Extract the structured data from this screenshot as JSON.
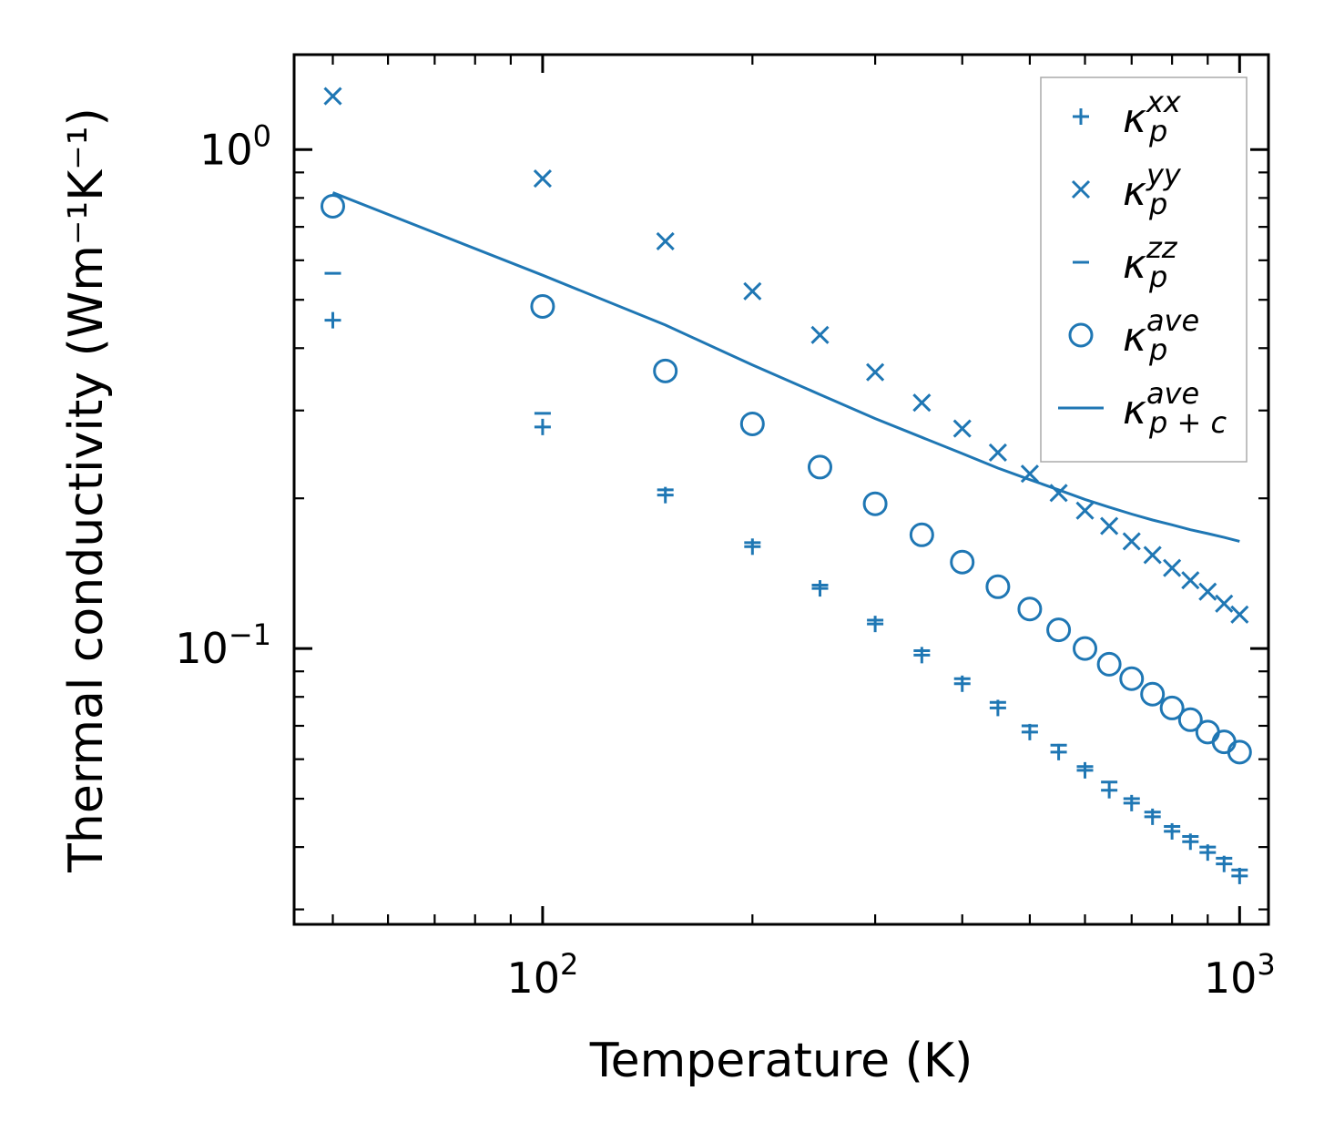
{
  "chart_data": {
    "type": "scatter",
    "xscale": "log",
    "yscale": "log",
    "xlim": [
      44,
      1100
    ],
    "ylim": [
      0.028,
      1.55
    ],
    "xlabel": "Temperature (K)",
    "ylabel": "Thermal conductivity (Wm⁻¹K⁻¹)",
    "color": "#1f77b4",
    "x_ticks": [
      {
        "value": 100,
        "base": "10",
        "exp": "2"
      },
      {
        "value": 1000,
        "base": "10",
        "exp": "3"
      }
    ],
    "y_ticks": [
      {
        "value": 0.1,
        "base": "10",
        "exp": "−1"
      },
      {
        "value": 1,
        "base": "10",
        "exp": "0"
      }
    ],
    "x": [
      50,
      100,
      150,
      200,
      250,
      300,
      350,
      400,
      450,
      500,
      550,
      600,
      650,
      700,
      750,
      800,
      850,
      900,
      950,
      1000
    ],
    "series": [
      {
        "name": "kxx",
        "marker": "plus",
        "label": {
          "base": "κ",
          "sup": "xx",
          "sub": "p"
        },
        "values": [
          0.455,
          0.278,
          0.203,
          0.16,
          0.132,
          0.112,
          0.097,
          0.085,
          0.076,
          0.068,
          0.062,
          0.057,
          0.052,
          0.049,
          0.046,
          0.043,
          0.041,
          0.039,
          0.037,
          0.035
        ]
      },
      {
        "name": "kyy",
        "marker": "x",
        "label": {
          "base": "κ",
          "sup": "yy",
          "sub": "p"
        },
        "values": [
          1.28,
          0.875,
          0.655,
          0.52,
          0.425,
          0.358,
          0.311,
          0.276,
          0.247,
          0.224,
          0.205,
          0.189,
          0.176,
          0.164,
          0.154,
          0.145,
          0.137,
          0.13,
          0.123,
          0.117
        ]
      },
      {
        "name": "kzz",
        "marker": "minus",
        "label": {
          "base": "κ",
          "sup": "zz",
          "sub": "p"
        },
        "values": [
          0.565,
          0.296,
          0.208,
          0.163,
          0.134,
          0.114,
          0.099,
          0.087,
          0.078,
          0.07,
          0.064,
          0.058,
          0.054,
          0.05,
          0.047,
          0.044,
          0.042,
          0.04,
          0.038,
          0.036
        ]
      },
      {
        "name": "kave",
        "marker": "circle",
        "label": {
          "base": "κ",
          "sup": "ave",
          "sub": "p"
        },
        "values": [
          0.77,
          0.485,
          0.36,
          0.282,
          0.231,
          0.195,
          0.169,
          0.149,
          0.133,
          0.12,
          0.109,
          0.1,
          0.093,
          0.087,
          0.081,
          0.076,
          0.072,
          0.068,
          0.065,
          0.062
        ]
      },
      {
        "name": "kave_pc",
        "marker": "line",
        "label": {
          "base": "κ",
          "sup": "ave",
          "sub": "p + c"
        },
        "values": [
          0.82,
          0.56,
          0.445,
          0.37,
          0.323,
          0.289,
          0.265,
          0.246,
          0.23,
          0.218,
          0.208,
          0.199,
          0.192,
          0.186,
          0.181,
          0.177,
          0.173,
          0.17,
          0.167,
          0.164
        ]
      }
    ],
    "legend_position": "top-right"
  }
}
